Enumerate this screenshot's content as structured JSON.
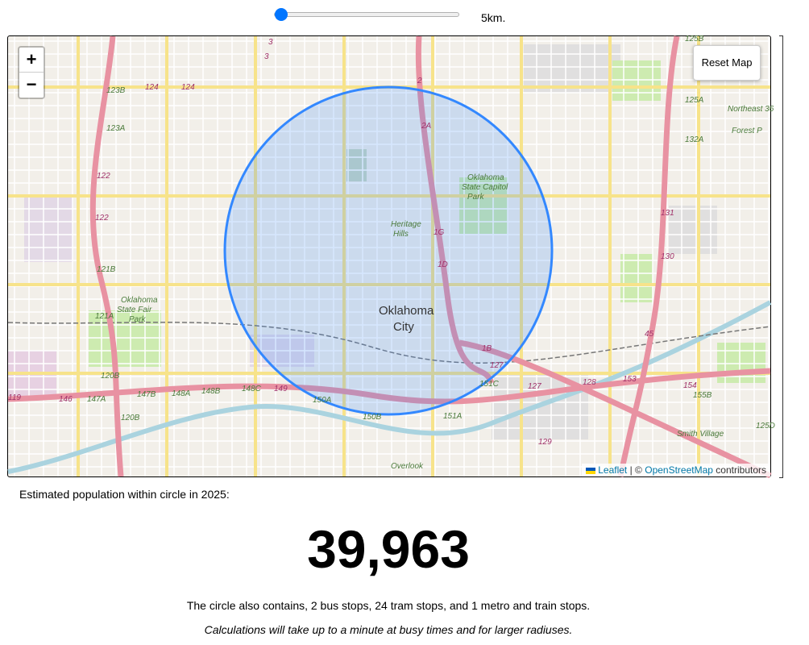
{
  "slider": {
    "label": "5km."
  },
  "map": {
    "zoom_in": "+",
    "zoom_out": "−",
    "reset_button": "Reset Map",
    "labels": [
      "Oklahoma",
      "City",
      "Heritage",
      "Hills",
      "Oklahoma",
      "State Capitol",
      "Park",
      "Oklahoma",
      "State Fair",
      "Park",
      "Forest P",
      "Smith Village",
      "Northeast 36",
      "Overlook",
      "124",
      "124",
      "123B",
      "123A",
      "122",
      "122",
      "121B",
      "121A",
      "120B",
      "120B",
      "146",
      "147A",
      "147B",
      "148A",
      "148B",
      "148C",
      "149",
      "150A",
      "150B",
      "151A",
      "151C",
      "127",
      "128",
      "153",
      "154",
      "155B",
      "125D",
      "129",
      "130",
      "131",
      "132A",
      "125A",
      "125B",
      "3",
      "3",
      "2",
      "2A",
      "1G",
      "1D",
      "1B",
      "127",
      "45",
      "119"
    ],
    "attribution": {
      "leaflet": "Leaflet",
      "separator": "| ©",
      "osm": "OpenStreetMap",
      "suffix": "contributors"
    }
  },
  "result": {
    "caption": "Estimated population within circle in 2025:",
    "population": "39,963",
    "stops": "The circle also contains, 2 bus stops, 24 tram stops, and 1 metro and train stops.",
    "note": "Calculations will take up to a minute at busy times and for larger radiuses."
  }
}
